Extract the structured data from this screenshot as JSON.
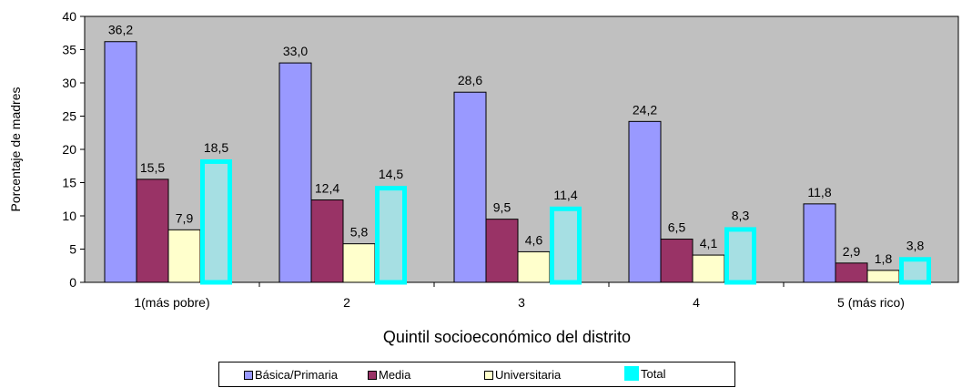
{
  "chart_data": {
    "type": "bar",
    "categories": [
      "1(más pobre)",
      "2",
      "3",
      "4",
      "5 (más rico)"
    ],
    "series": [
      {
        "name": "Básica/Primaria",
        "values": [
          36.2,
          33.0,
          28.6,
          24.2,
          11.8
        ],
        "labels": [
          "36,2",
          "33,0",
          "28,6",
          "24,2",
          "11,8"
        ],
        "color": "#9999ff"
      },
      {
        "name": "Media",
        "values": [
          15.5,
          12.4,
          9.5,
          6.5,
          2.9
        ],
        "labels": [
          "15,5",
          "12,4",
          "9,5",
          "6,5",
          "2,9"
        ],
        "color": "#993366"
      },
      {
        "name": "Universitaria",
        "values": [
          7.9,
          5.8,
          4.6,
          4.1,
          1.8
        ],
        "labels": [
          "7,9",
          "5,8",
          "4,6",
          "4,1",
          "1,8"
        ],
        "color": "#ffffcc"
      },
      {
        "name": "Total",
        "values": [
          18.5,
          14.5,
          11.4,
          8.3,
          3.8
        ],
        "labels": [
          "18,5",
          "14,5",
          "11,4",
          "8,3",
          "3,8"
        ],
        "color": "#a6dfe3",
        "border_color": "#00ffff"
      }
    ],
    "ylabel": "Porcentaje de madres",
    "xlabel": "Quintil socioeconómico del distrito",
    "ylim": [
      0,
      40
    ],
    "yticks": [
      0,
      5,
      10,
      15,
      20,
      25,
      30,
      35,
      40
    ],
    "plot_background": "#c0c0c0",
    "grid": false,
    "legend_position": "bottom"
  }
}
